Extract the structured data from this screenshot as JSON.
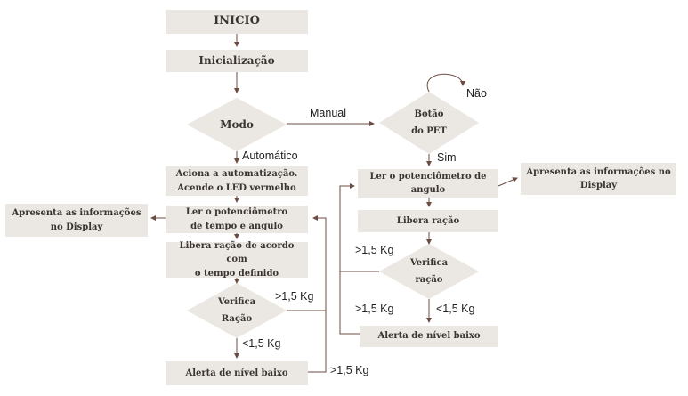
{
  "nodes": {
    "start": "INICIO",
    "init": "Inicialização",
    "modo": "Modo",
    "botao": "Botão\ndo PET",
    "aciona": "Aciona a automatização.\nAcende o LED vermelho",
    "ler_left": "Ler o potenciômetro\nde tempo e angulo",
    "display_left": "Apresenta as informações\nno Display",
    "libera_left": "Libera ração de acordo com\no tempo definido",
    "verifica_left": "Verifica\nRação",
    "alerta_left": "Alerta de nível baixo",
    "ler_right": "Ler o potenciômetro de\nangulo",
    "display_right": "Apresenta as informações no\nDisplay",
    "libera_right": "Libera ração",
    "verifica_right": "Verifica\nração",
    "alerta_right": "Alerta de nível baixo"
  },
  "edge_labels": {
    "manual": "Manual",
    "nao": "Não",
    "automatico": "Automático",
    "sim": "Sim",
    "gt_left_verifica": ">1,5 Kg",
    "lt_left": "<1,5 Kg",
    "gt_left_alerta": ">1,5 Kg",
    "gt_right_top": ">1,5 Kg",
    "gt_right_bottom": ">1,5 Kg",
    "lt_right": "<1,5 Kg"
  },
  "colors": {
    "box_fill": "#ebe7e3",
    "line": "#6b4d44",
    "text": "#3a3431"
  }
}
